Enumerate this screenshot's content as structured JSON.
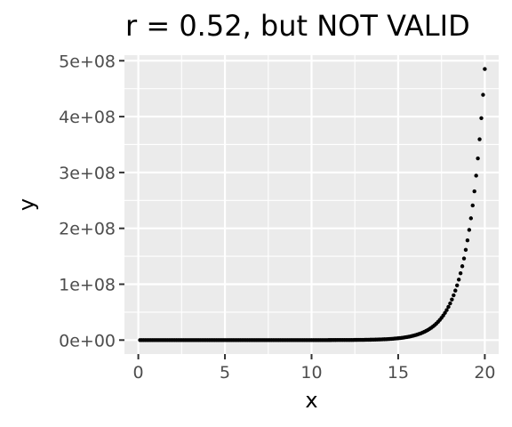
{
  "chart_data": {
    "type": "scatter",
    "title": "r = 0.52, but NOT VALID",
    "xlabel": "x",
    "ylabel": "y",
    "xlim": [
      -0.8,
      20.8
    ],
    "ylim": [
      -25000000,
      510000000
    ],
    "x_ticks": [
      0,
      5,
      10,
      15,
      20
    ],
    "x_tick_labels": [
      "0",
      "5",
      "10",
      "15",
      "20"
    ],
    "y_ticks": [
      0,
      100000000,
      200000000,
      300000000,
      400000000,
      500000000
    ],
    "y_tick_labels": [
      "0e+00",
      "1e+08",
      "2e+08",
      "3e+08",
      "4e+08",
      "5e+08"
    ],
    "grid": true,
    "legend": "none",
    "point_color": "#000000",
    "panel_background": "#ebebeb",
    "x": [
      0.1,
      0.2,
      0.3,
      0.4,
      0.5,
      0.6,
      0.7,
      0.8,
      0.9,
      1.0,
      1.1,
      1.2,
      1.3,
      1.4,
      1.5,
      1.6,
      1.7,
      1.8,
      1.9,
      2.0,
      2.1,
      2.2,
      2.3,
      2.4,
      2.5,
      2.6,
      2.7,
      2.8,
      2.9,
      3.0,
      3.1,
      3.2,
      3.3,
      3.4,
      3.5,
      3.6,
      3.7,
      3.8,
      3.9,
      4.0,
      4.1,
      4.2,
      4.3,
      4.4,
      4.5,
      4.6,
      4.7,
      4.8,
      4.9,
      5.0,
      5.1,
      5.2,
      5.3,
      5.4,
      5.5,
      5.6,
      5.7,
      5.8,
      5.9,
      6.0,
      6.1,
      6.2,
      6.3,
      6.4,
      6.5,
      6.6,
      6.7,
      6.8,
      6.9,
      7.0,
      7.1,
      7.2,
      7.3,
      7.4,
      7.5,
      7.6,
      7.7,
      7.8,
      7.9,
      8.0,
      8.1,
      8.2,
      8.3,
      8.4,
      8.5,
      8.6,
      8.7,
      8.8,
      8.9,
      9.0,
      9.1,
      9.2,
      9.3,
      9.4,
      9.5,
      9.6,
      9.7,
      9.8,
      9.9,
      10.0,
      10.1,
      10.2,
      10.3,
      10.4,
      10.5,
      10.6,
      10.7,
      10.8,
      10.9,
      11.0,
      11.1,
      11.2,
      11.3,
      11.4,
      11.5,
      11.6,
      11.7,
      11.8,
      11.9,
      12.0,
      12.1,
      12.2,
      12.3,
      12.4,
      12.5,
      12.6,
      12.7,
      12.8,
      12.9,
      13.0,
      13.1,
      13.2,
      13.3,
      13.4,
      13.5,
      13.6,
      13.7,
      13.8,
      13.9,
      14.0,
      14.1,
      14.2,
      14.3,
      14.4,
      14.5,
      14.6,
      14.7,
      14.8,
      14.9,
      15.0,
      15.1,
      15.2,
      15.3,
      15.4,
      15.5,
      15.6,
      15.7,
      15.8,
      15.9,
      16.0,
      16.1,
      16.2,
      16.3,
      16.4,
      16.5,
      16.6,
      16.7,
      16.8,
      16.9,
      17.0,
      17.1,
      17.2,
      17.3,
      17.4,
      17.5,
      17.6,
      17.7,
      17.8,
      17.9,
      18.0,
      18.1,
      18.2,
      18.3,
      18.4,
      18.5,
      18.6,
      18.7,
      18.8,
      18.9,
      19.0,
      19.1,
      19.2,
      19.3,
      19.4,
      19.5,
      19.6,
      19.7,
      19.8,
      19.9,
      20.0
    ],
    "y": [
      1,
      1,
      1,
      2,
      2,
      2,
      2,
      2,
      2,
      3,
      3,
      3,
      4,
      4,
      4,
      5,
      5,
      6,
      7,
      7,
      8,
      9,
      10,
      11,
      12,
      13,
      15,
      16,
      18,
      20,
      22,
      25,
      27,
      30,
      33,
      37,
      40,
      45,
      49,
      55,
      60,
      67,
      74,
      81,
      90,
      99,
      110,
      122,
      134,
      148,
      164,
      181,
      200,
      221,
      245,
      270,
      299,
      330,
      365,
      403,
      446,
      493,
      545,
      602,
      665,
      735,
      812,
      898,
      992,
      1097,
      1212,
      1339,
      1480,
      1636,
      1808,
      1998,
      2208,
      2441,
      2697,
      2981,
      3294,
      3641,
      4024,
      4447,
      4915,
      5432,
      6003,
      6634,
      7332,
      8103,
      8955,
      9897,
      10938,
      12088,
      13360,
      14765,
      16318,
      18034,
      19930,
      22026,
      24343,
      26903,
      29733,
      32860,
      36316,
      40135,
      44356,
      49021,
      54176,
      59874,
      66171,
      73130,
      80821,
      89322,
      98716,
      109098,
      120572,
      133252,
      147267,
      162755,
      179872,
      198789,
      219696,
      242802,
      268337,
      296559,
      327748,
      362217,
      400312,
      442413,
      488942,
      540364,
      597195,
      660003,
      729416,
      806130,
      890911,
      984609,
      1088161,
      1202604,
      1329083,
      1468864,
      1623345,
      1794074,
      1982759,
      2191288,
      2421748,
      2676445,
      2957929,
      3269017,
      3612822,
      3992786,
      4412712,
      4876801,
      5389698,
      5956538,
      6582993,
      7275332,
      8040474,
      8886111,
      9820671,
      10853520,
      11994995,
      13256519,
      14650719,
      16191549,
      17894429,
      19776403,
      21856260,
      24154952,
      26695334,
      29502866,
      32605717,
      36034856,
      39824784,
      44013193,
      48642057,
      53757848,
      59411565,
      65659969,
      72565648,
      80197529,
      88632161,
      97953931,
      108255930,
      119641120,
      132224200,
      146132900,
      161504800,
      178493900,
      197269400,
      218018000,
      240949300,
      266292800,
      294300000,
      325252900,
      359461700,
      397266000,
      439046600,
      485165200
    ]
  }
}
